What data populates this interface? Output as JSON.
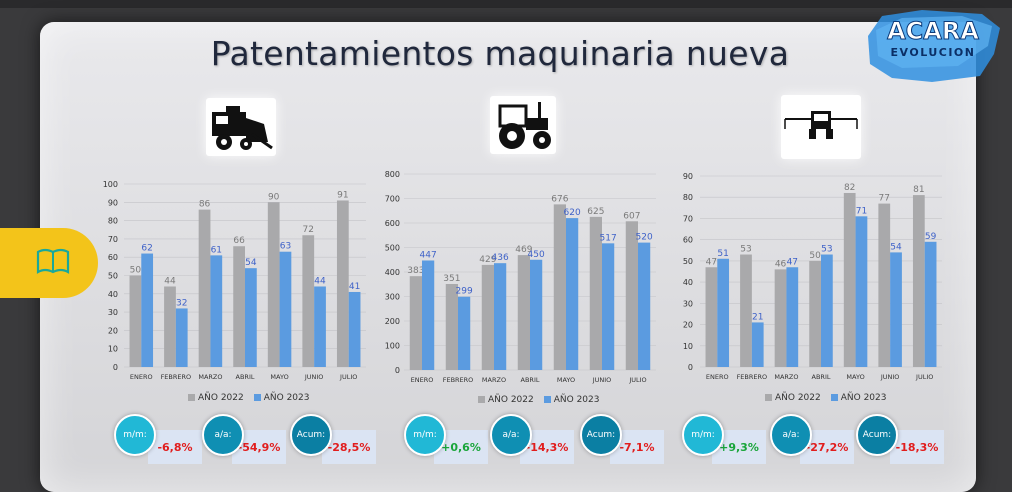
{
  "title": "Patentamientos maquinaria nueva",
  "logo": {
    "line1": "ACARA",
    "line2": "EVOLUCION"
  },
  "colors": {
    "bar_2022": "#a9a9ab",
    "bar_2023": "#5b9be0",
    "kpi_light": "#21b8d6",
    "kpi_dark": "#0f8fb3",
    "negative": "#e11d1d",
    "positive": "#19a53a"
  },
  "icons": [
    "combine-harvester-icon",
    "tractor-icon",
    "sprayer-icon",
    "book-icon"
  ],
  "legend": {
    "a": "AÑO 2022",
    "b": "AÑO 2023"
  },
  "chart_data": [
    {
      "type": "bar",
      "categories": [
        "ENERO",
        "FEBRERO",
        "MARZO",
        "ABRIL",
        "MAYO",
        "JUNIO",
        "JULIO"
      ],
      "series": [
        {
          "name": "AÑO 2022",
          "values": [
            50,
            44,
            86,
            66,
            90,
            72,
            91
          ]
        },
        {
          "name": "AÑO 2023",
          "values": [
            62,
            32,
            61,
            54,
            63,
            44,
            41
          ]
        }
      ],
      "ylim": [
        0,
        100
      ],
      "yticks": [
        0,
        10,
        20,
        30,
        40,
        50,
        60,
        70,
        80,
        90,
        100
      ],
      "legend_position": "bottom"
    },
    {
      "type": "bar",
      "categories": [
        "ENERO",
        "FEBRERO",
        "MARZO",
        "ABRIL",
        "MAYO",
        "JUNIO",
        "JULIO"
      ],
      "series": [
        {
          "name": "AÑO 2022",
          "values": [
            383,
            351,
            429,
            469,
            676,
            625,
            607
          ]
        },
        {
          "name": "AÑO 2023",
          "values": [
            447,
            299,
            436,
            450,
            620,
            517,
            520
          ]
        }
      ],
      "ylim": [
        0,
        800
      ],
      "yticks": [
        0,
        100,
        200,
        300,
        400,
        500,
        600,
        700,
        800
      ],
      "legend_position": "bottom"
    },
    {
      "type": "bar",
      "categories": [
        "ENERO",
        "FEBRERO",
        "MARZO",
        "ABRIL",
        "MAYO",
        "JUNIO",
        "JULIO"
      ],
      "series": [
        {
          "name": "AÑO 2022",
          "values": [
            47,
            53,
            46,
            50,
            82,
            77,
            81
          ]
        },
        {
          "name": "AÑO 2023",
          "values": [
            51,
            21,
            47,
            53,
            71,
            54,
            59
          ]
        }
      ],
      "ylim": [
        0,
        90
      ],
      "yticks": [
        0,
        10,
        20,
        30,
        40,
        50,
        60,
        70,
        80,
        90
      ],
      "legend_position": "bottom"
    }
  ],
  "kpis": [
    [
      {
        "label": "m/m:",
        "value": "-6,8%",
        "sign": "neg"
      },
      {
        "label": "a/a:",
        "value": "-54,9%",
        "sign": "neg"
      },
      {
        "label": "Acum:",
        "value": "-28,5%",
        "sign": "neg"
      }
    ],
    [
      {
        "label": "m/m:",
        "value": "+0,6%",
        "sign": "pos"
      },
      {
        "label": "a/a:",
        "value": "-14,3%",
        "sign": "neg"
      },
      {
        "label": "Acum:",
        "value": "-7,1%",
        "sign": "neg"
      }
    ],
    [
      {
        "label": "m/m:",
        "value": "+9,3%",
        "sign": "pos"
      },
      {
        "label": "a/a:",
        "value": "-27,2%",
        "sign": "neg"
      },
      {
        "label": "Acum:",
        "value": "-18,3%",
        "sign": "neg"
      }
    ]
  ]
}
